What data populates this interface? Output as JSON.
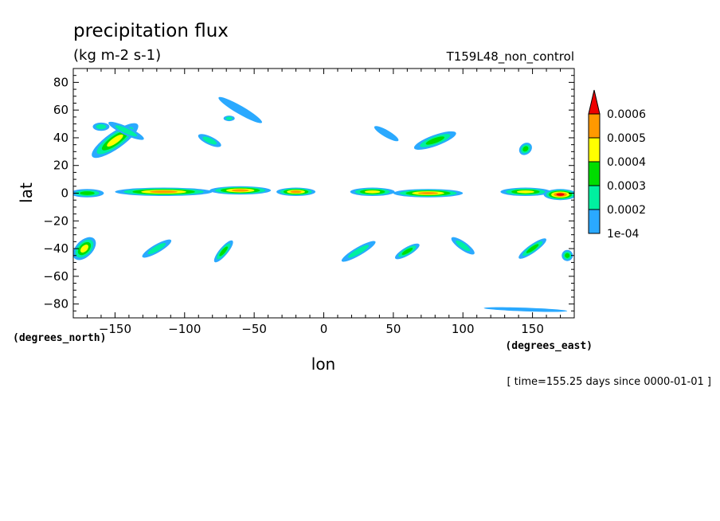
{
  "chart_data": {
    "type": "heatmap",
    "title": "precipitation flux",
    "units": "(kg m-2 s-1)",
    "run_label": "T159L48_non_control",
    "xlabel": "lon",
    "ylabel": "lat",
    "xunit_note": "(degrees_east)",
    "yunit_note": "(degrees_north)",
    "time_note": "[ time=155.25 days since 0000-01-01 ]",
    "xlim": [
      -180,
      180
    ],
    "ylim": [
      -90,
      90
    ],
    "xticks": [
      -150,
      -100,
      -50,
      0,
      50,
      100,
      150
    ],
    "yticks": [
      80,
      60,
      40,
      20,
      0,
      -20,
      -40,
      -60,
      -80
    ],
    "colorbar": {
      "levels": [
        0.0001,
        0.0002,
        0.0003,
        0.0004,
        0.0005,
        0.0006
      ],
      "labels": [
        "1e-04",
        "0.0002",
        "0.0003",
        "0.0004",
        "0.0005",
        "0.0006"
      ],
      "colors": [
        "#2aa9ff",
        "#00f0a0",
        "#00dd00",
        "#ffff00",
        "#ff9900",
        "#ee0000"
      ],
      "extend": "max"
    },
    "features": [
      {
        "name": "central-pacific-north-band",
        "lon": -150,
        "lat": 38,
        "dlon": 20,
        "dlat": 6,
        "angle": 35,
        "level": 4
      },
      {
        "name": "north-pacific-storm-a",
        "lon": -142,
        "lat": 45,
        "dlon": 14,
        "dlat": 3,
        "angle": -25,
        "level": 2
      },
      {
        "name": "north-pacific-storm-b",
        "lon": -160,
        "lat": 48,
        "dlon": 6,
        "dlat": 3,
        "angle": 0,
        "level": 2
      },
      {
        "name": "east-pacific-band",
        "lon": -82,
        "lat": 38,
        "dlon": 9,
        "dlat": 3,
        "angle": -25,
        "level": 2
      },
      {
        "name": "canada-arc",
        "lon": -60,
        "lat": 60,
        "dlon": 18,
        "dlat": 3,
        "angle": -30,
        "level": 1
      },
      {
        "name": "north-atlantic-spot",
        "lon": -68,
        "lat": 54,
        "dlon": 4,
        "dlat": 2,
        "angle": 0,
        "level": 2
      },
      {
        "name": "europe-band",
        "lon": 45,
        "lat": 43,
        "dlon": 10,
        "dlat": 2.5,
        "angle": -30,
        "level": 1
      },
      {
        "name": "asia-hook",
        "lon": 80,
        "lat": 38,
        "dlon": 16,
        "dlat": 4,
        "angle": 20,
        "level": 3
      },
      {
        "name": "west-pacific-spot",
        "lon": 145,
        "lat": 32,
        "dlon": 5,
        "dlat": 4,
        "angle": 40,
        "level": 3
      },
      {
        "name": "itcz-central-pacific",
        "lon": -115,
        "lat": 1,
        "dlon": 35,
        "dlat": 3,
        "angle": 0,
        "level": 5
      },
      {
        "name": "itcz-east-pacific",
        "lon": -60,
        "lat": 2,
        "dlon": 22,
        "dlat": 3,
        "angle": 0,
        "level": 5
      },
      {
        "name": "itcz-far-east-pacific",
        "lon": -170,
        "lat": 0,
        "dlon": 12,
        "dlat": 3,
        "angle": 0,
        "level": 3
      },
      {
        "name": "itcz-atlantic",
        "lon": -20,
        "lat": 1,
        "dlon": 14,
        "dlat": 3,
        "angle": 0,
        "level": 5
      },
      {
        "name": "itcz-africa",
        "lon": 35,
        "lat": 1,
        "dlon": 16,
        "dlat": 3,
        "angle": 0,
        "level": 4
      },
      {
        "name": "itcz-indian-ocean",
        "lon": 75,
        "lat": 0,
        "dlon": 25,
        "dlat": 3,
        "angle": 0,
        "level": 5
      },
      {
        "name": "itcz-maritime",
        "lon": 145,
        "lat": 1,
        "dlon": 18,
        "dlat": 3,
        "angle": 0,
        "level": 4
      },
      {
        "name": "itcz-west-pacific",
        "lon": 170,
        "lat": -1,
        "dlon": 12,
        "dlat": 4,
        "angle": 0,
        "level": 6
      },
      {
        "name": "south-pacific-storm",
        "lon": -172,
        "lat": -40,
        "dlon": 10,
        "dlat": 6,
        "angle": 45,
        "level": 4
      },
      {
        "name": "south-pacific-band-a",
        "lon": -120,
        "lat": -40,
        "dlon": 12,
        "dlat": 3,
        "angle": 30,
        "level": 2
      },
      {
        "name": "south-pacific-band-b",
        "lon": -72,
        "lat": -42,
        "dlon": 10,
        "dlat": 3,
        "angle": 50,
        "level": 3
      },
      {
        "name": "south-atlantic-band",
        "lon": 25,
        "lat": -42,
        "dlon": 14,
        "dlat": 3,
        "angle": 30,
        "level": 2
      },
      {
        "name": "south-indian-band-a",
        "lon": 60,
        "lat": -42,
        "dlon": 10,
        "dlat": 3,
        "angle": 30,
        "level": 3
      },
      {
        "name": "south-indian-band-b",
        "lon": 100,
        "lat": -38,
        "dlon": 10,
        "dlat": 3,
        "angle": -35,
        "level": 2
      },
      {
        "name": "south-west-pacific-band",
        "lon": 150,
        "lat": -40,
        "dlon": 12,
        "dlat": 3,
        "angle": 35,
        "level": 3
      },
      {
        "name": "south-west-pacific-edge",
        "lon": 175,
        "lat": -45,
        "dlon": 4,
        "dlat": 4,
        "angle": 0,
        "level": 3
      },
      {
        "name": "antarctic-coast",
        "lon": 145,
        "lat": -84,
        "dlon": 30,
        "dlat": 1.3,
        "angle": -2,
        "level": 1
      }
    ]
  }
}
